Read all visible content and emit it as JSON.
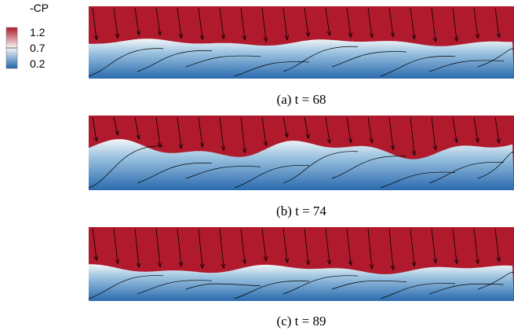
{
  "colorbar": {
    "title": "-CP",
    "ticks": [
      "1.2",
      "0.7",
      "0.2"
    ]
  },
  "panels": [
    {
      "caption": "(a) t = 68"
    },
    {
      "caption": "(b) t = 74"
    },
    {
      "caption": "(c) t = 89"
    }
  ]
}
